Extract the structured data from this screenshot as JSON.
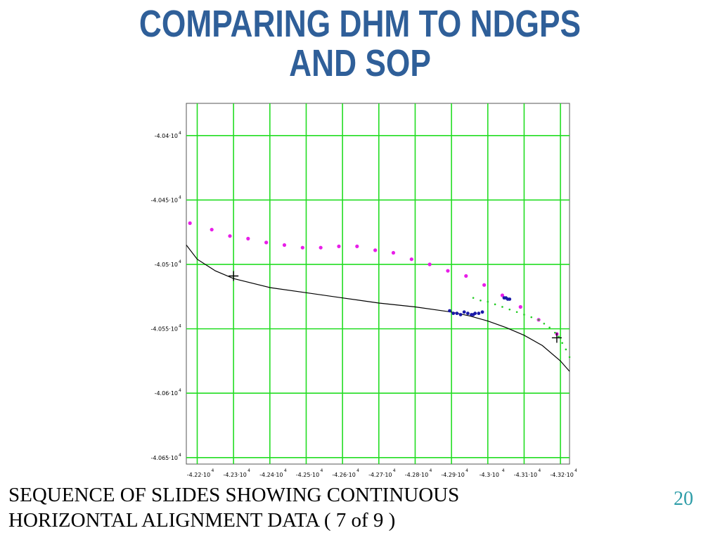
{
  "slide": {
    "title_line1": "COMPARING DHM TO NDGPS",
    "title_line2": "AND SOP",
    "caption_line1": "SEQUENCE OF SLIDES SHOWING CONTINUOUS",
    "caption_line2": "HORIZONTAL ALIGNMENT DATA ( 7 of 9 )",
    "slide_number": "20"
  },
  "colors": {
    "title": "#2f5f99",
    "grid": "#22dd22",
    "sop_points": "#e81ee8",
    "ndgps_points": "#22cc22",
    "dhm_points": "#1a1aa8",
    "alignment_line": "#000000",
    "slide_number": "#2e9da8"
  },
  "chart_data": {
    "type": "scatter",
    "grid": true,
    "xlim": [
      -42170,
      -43225
    ],
    "ylim": [
      -40375,
      -40655
    ],
    "x_ticks": [
      {
        "value": -42200,
        "mantissa": "-4.22",
        "exp": "4"
      },
      {
        "value": -42300,
        "mantissa": "-4.23",
        "exp": "4"
      },
      {
        "value": -42400,
        "mantissa": "-4.24",
        "exp": "4"
      },
      {
        "value": -42500,
        "mantissa": "-4.25",
        "exp": "4"
      },
      {
        "value": -42600,
        "mantissa": "-4.26",
        "exp": "4"
      },
      {
        "value": -42700,
        "mantissa": "-4.27",
        "exp": "4"
      },
      {
        "value": -42800,
        "mantissa": "-4.28",
        "exp": "4"
      },
      {
        "value": -42900,
        "mantissa": "-4.29",
        "exp": "4"
      },
      {
        "value": -43000,
        "mantissa": "-4.3",
        "exp": "4"
      },
      {
        "value": -43100,
        "mantissa": "-4.31",
        "exp": "4"
      },
      {
        "value": -43200,
        "mantissa": "-4.32",
        "exp": "4"
      }
    ],
    "y_ticks": [
      {
        "value": -40400,
        "mantissa": "-4.04",
        "exp": "4"
      },
      {
        "value": -40450,
        "mantissa": "-4.045",
        "exp": "4"
      },
      {
        "value": -40500,
        "mantissa": "-4.05",
        "exp": "4"
      },
      {
        "value": -40550,
        "mantissa": "-4.055",
        "exp": "4"
      },
      {
        "value": -40600,
        "mantissa": "-4.06",
        "exp": "4"
      },
      {
        "value": -40650,
        "mantissa": "-4.065",
        "exp": "4"
      }
    ],
    "alignment_curve": [
      [
        -42170,
        -40485
      ],
      [
        -42200,
        -40496
      ],
      [
        -42250,
        -40505
      ],
      [
        -42300,
        -40511
      ],
      [
        -42400,
        -40518
      ],
      [
        -42500,
        -40522
      ],
      [
        -42600,
        -40526
      ],
      [
        -42700,
        -40530
      ],
      [
        -42800,
        -40533
      ],
      [
        -42900,
        -40537
      ],
      [
        -42950,
        -40540
      ],
      [
        -43000,
        -40544
      ],
      [
        -43050,
        -40549
      ],
      [
        -43100,
        -40555
      ],
      [
        -43150,
        -40563
      ],
      [
        -43200,
        -40575
      ],
      [
        -43225,
        -40583
      ]
    ],
    "markers": [
      [
        -42300,
        -40509
      ],
      [
        -43190,
        -40557
      ]
    ],
    "series": [
      {
        "points": [
          [
            -42180,
            -40468
          ],
          [
            -42240,
            -40473
          ],
          [
            -42290,
            -40478
          ],
          [
            -42340,
            -40480
          ],
          [
            -42390,
            -40483
          ],
          [
            -42440,
            -40485
          ],
          [
            -42490,
            -40487
          ],
          [
            -42540,
            -40487
          ],
          [
            -42590,
            -40486
          ],
          [
            -42640,
            -40486
          ],
          [
            -42690,
            -40489
          ],
          [
            -42740,
            -40491
          ],
          [
            -42790,
            -40496
          ],
          [
            -42840,
            -40500
          ],
          [
            -42890,
            -40505
          ],
          [
            -42940,
            -40509
          ],
          [
            -42990,
            -40516
          ],
          [
            -43040,
            -40524
          ],
          [
            -43090,
            -40533
          ],
          [
            -43140,
            -40543
          ],
          [
            -43190,
            -40554
          ]
        ]
      },
      {
        "points": [
          [
            -42895,
            -40536
          ],
          [
            -42905,
            -40538
          ],
          [
            -42915,
            -40538
          ],
          [
            -42925,
            -40539
          ],
          [
            -42935,
            -40537
          ],
          [
            -42945,
            -40538
          ],
          [
            -42955,
            -40539
          ],
          [
            -42960,
            -40539
          ],
          [
            -42965,
            -40538
          ],
          [
            -42975,
            -40538
          ],
          [
            -42985,
            -40537
          ],
          [
            -43045,
            -40526
          ],
          [
            -43050,
            -40526
          ],
          [
            -43055,
            -40527
          ],
          [
            -43060,
            -40527
          ]
        ]
      },
      {
        "points": [
          [
            -42960,
            -40526
          ],
          [
            -42980,
            -40528
          ],
          [
            -43000,
            -40529
          ],
          [
            -43020,
            -40531
          ],
          [
            -43040,
            -40533
          ],
          [
            -43060,
            -40535
          ],
          [
            -43080,
            -40537
          ],
          [
            -43100,
            -40539
          ],
          [
            -43120,
            -40541
          ],
          [
            -43140,
            -40543
          ],
          [
            -43155,
            -40546
          ],
          [
            -43170,
            -40549
          ],
          [
            -43185,
            -40553
          ],
          [
            -43195,
            -40556
          ],
          [
            -43205,
            -40561
          ],
          [
            -43215,
            -40566
          ],
          [
            -43225,
            -40572
          ]
        ]
      }
    ]
  }
}
